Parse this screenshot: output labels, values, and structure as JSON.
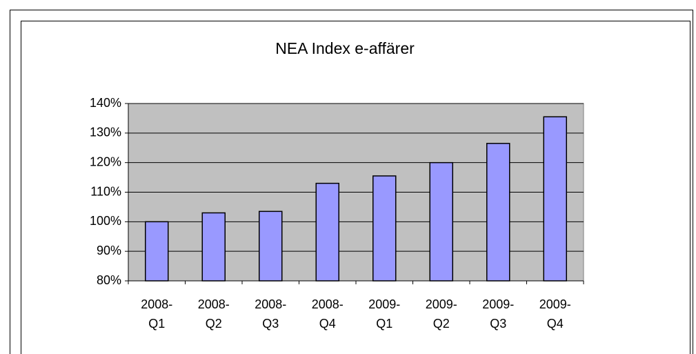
{
  "chart_data": {
    "type": "bar",
    "title": "NEA Index e-affärer",
    "categories": [
      "2008-Q1",
      "2008-Q2",
      "2008-Q3",
      "2008-Q4",
      "2009-Q1",
      "2009-Q2",
      "2009-Q3",
      "2009-Q4"
    ],
    "values": [
      100,
      103,
      103.5,
      113,
      115.5,
      120,
      126.5,
      135.5
    ],
    "color": "#9999ff",
    "ylim": [
      80,
      140
    ],
    "yticks": [
      {
        "value": 80,
        "label": "80%"
      },
      {
        "value": 90,
        "label": "90%"
      },
      {
        "value": 100,
        "label": "100%"
      },
      {
        "value": 110,
        "label": "110%"
      },
      {
        "value": 120,
        "label": "120%"
      },
      {
        "value": 130,
        "label": "130%"
      },
      {
        "value": 140,
        "label": "140%"
      }
    ],
    "grid": true
  }
}
